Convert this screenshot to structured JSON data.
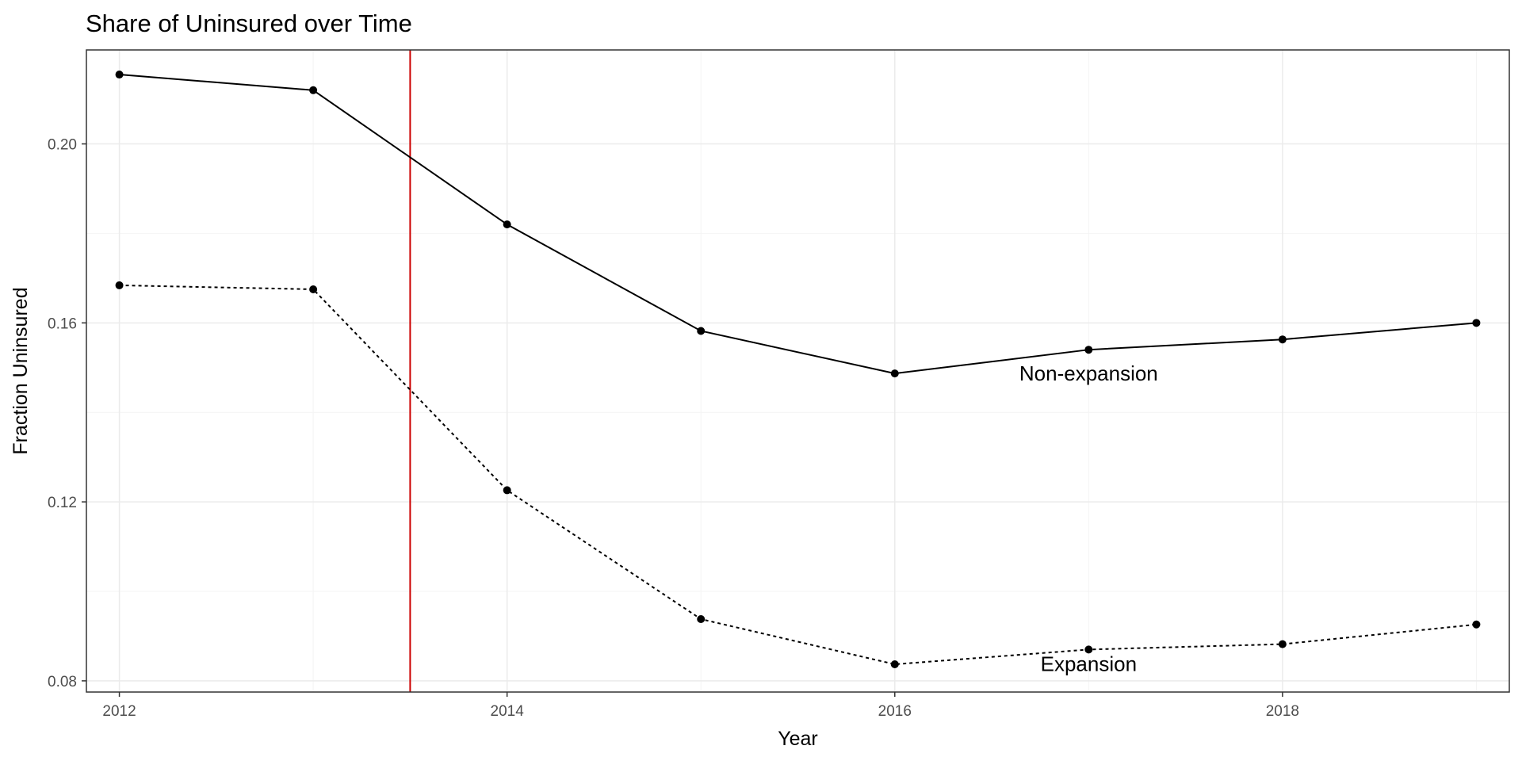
{
  "chart_data": {
    "type": "line",
    "title": "Share of Uninsured over Time",
    "xlabel": "Year",
    "ylabel": "Fraction Uninsured",
    "x": [
      2012,
      2013,
      2014,
      2015,
      2016,
      2017,
      2018,
      2019
    ],
    "series": [
      {
        "name": "Non-expansion",
        "line_style": "solid",
        "values": [
          0.2155,
          0.212,
          0.182,
          0.1582,
          0.1487,
          0.154,
          0.1563,
          0.16
        ]
      },
      {
        "name": "Expansion",
        "line_style": "dotted",
        "values": [
          0.1684,
          0.1675,
          0.1226,
          0.0938,
          0.0837,
          0.087,
          0.0882,
          0.0926
        ]
      }
    ],
    "xlim": [
      2011.83,
      2019.17
    ],
    "ylim": [
      0.0775,
      0.221
    ],
    "x_ticks": [
      "2012",
      "2014",
      "2016",
      "2018"
    ],
    "x_tick_values": [
      2012,
      2014,
      2016,
      2018
    ],
    "x_minor_values": [
      2013,
      2015,
      2017,
      2019
    ],
    "y_ticks": [
      "0.08",
      "0.12",
      "0.16",
      "0.20"
    ],
    "y_tick_values": [
      0.08,
      0.12,
      0.16,
      0.2
    ],
    "y_minor_values": [
      0.1,
      0.14,
      0.18
    ],
    "reference_line": {
      "x": 2013.5,
      "color": "#cc0000"
    },
    "label_positions": [
      {
        "series": "Non-expansion",
        "x": 2017.0,
        "y": 0.1487
      },
      {
        "series": "Expansion",
        "x": 2017.0,
        "y": 0.0838
      }
    ],
    "grid": true,
    "legend": "none",
    "colors": {
      "line": "#000000",
      "grid": "#ebebeb",
      "panel_border": "#333333"
    }
  }
}
